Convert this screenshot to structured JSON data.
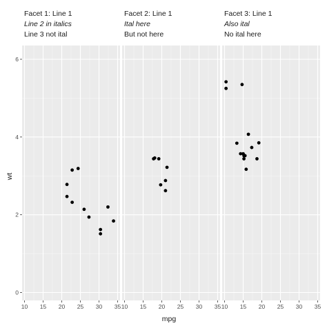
{
  "chart_data": {
    "type": "scatter",
    "xlabel": "mpg",
    "ylabel": "wt",
    "xlim": [
      10,
      35
    ],
    "ylim": [
      0,
      6
    ],
    "x_ticks": [
      "10",
      "15",
      "20",
      "25",
      "30",
      "35"
    ],
    "y_ticks": [
      "0",
      "2",
      "4",
      "6"
    ],
    "grid": true,
    "facets": [
      {
        "strip": [
          "Facet 1: Line 1",
          "Line 2 in italics",
          "Line 3 not ital"
        ],
        "italic_line": 1,
        "points": [
          [
            22.8,
            3.15
          ],
          [
            24.4,
            3.19
          ],
          [
            21.4,
            2.78
          ],
          [
            21.4,
            2.47
          ],
          [
            22.8,
            2.32
          ],
          [
            26.0,
            2.14
          ],
          [
            27.3,
            1.94
          ],
          [
            30.4,
            1.62
          ],
          [
            30.4,
            1.51
          ],
          [
            32.4,
            2.2
          ],
          [
            33.9,
            1.84
          ]
        ]
      },
      {
        "strip": [
          "Facet 2: Line 1",
          "Ital here",
          "But not here"
        ],
        "italic_line": 1,
        "points": [
          [
            17.8,
            3.44
          ],
          [
            18.1,
            3.46
          ],
          [
            19.2,
            3.44
          ],
          [
            19.7,
            2.77
          ],
          [
            21.0,
            2.62
          ],
          [
            21.0,
            2.88
          ],
          [
            21.4,
            3.22
          ]
        ]
      },
      {
        "strip": [
          "Facet 3: Line 1",
          "Also ital",
          "No ital here"
        ],
        "italic_line": 1,
        "points": [
          [
            10.4,
            5.42
          ],
          [
            10.4,
            5.25
          ],
          [
            14.7,
            5.35
          ],
          [
            13.3,
            3.84
          ],
          [
            14.3,
            3.57
          ],
          [
            15.0,
            3.57
          ],
          [
            15.2,
            3.52
          ],
          [
            15.5,
            3.52
          ],
          [
            15.2,
            3.44
          ],
          [
            15.8,
            3.17
          ],
          [
            16.4,
            4.07
          ],
          [
            17.3,
            3.73
          ],
          [
            18.7,
            3.44
          ],
          [
            19.2,
            3.85
          ]
        ]
      }
    ]
  }
}
